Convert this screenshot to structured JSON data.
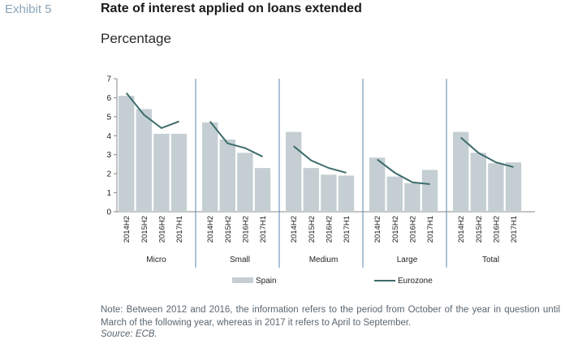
{
  "header": {
    "exhibit": "Exhibit 5",
    "title": "Rate of interest applied on loans extended",
    "subtitle": "Percentage"
  },
  "chart_data": {
    "type": "bar",
    "groups": [
      "Micro",
      "Small",
      "Medium",
      "Large",
      "Total"
    ],
    "categories": [
      "2014H2",
      "2015H2",
      "2016H2",
      "2017H1"
    ],
    "yticks": [
      0,
      1,
      2,
      3,
      4,
      5,
      6,
      7
    ],
    "ylim": [
      0,
      7
    ],
    "series": [
      {
        "name": "Spain",
        "type": "bar",
        "color": "#c5cfd3",
        "values": [
          [
            6.1,
            5.4,
            4.1,
            4.1
          ],
          [
            4.7,
            3.8,
            3.1,
            2.3
          ],
          [
            4.2,
            2.3,
            1.95,
            1.9
          ],
          [
            2.85,
            1.85,
            1.5,
            2.2
          ],
          [
            4.2,
            3.1,
            2.55,
            2.6
          ]
        ]
      },
      {
        "name": "Eurozone",
        "type": "line",
        "color": "#3d6b6b",
        "values": [
          [
            6.25,
            5.1,
            4.4,
            4.75
          ],
          [
            4.75,
            3.6,
            3.35,
            2.9
          ],
          [
            3.45,
            2.7,
            2.3,
            2.05
          ],
          [
            2.75,
            2.05,
            1.55,
            1.45
          ],
          [
            3.9,
            3.1,
            2.6,
            2.35
          ]
        ]
      }
    ],
    "legend": "bottom"
  },
  "footer": {
    "note": "Note: Between 2012 and 2016, the information refers to the period from October of the year in question until March of the following year, whereas in 2017 it refers to April to September.",
    "source": "Source: ECB."
  }
}
